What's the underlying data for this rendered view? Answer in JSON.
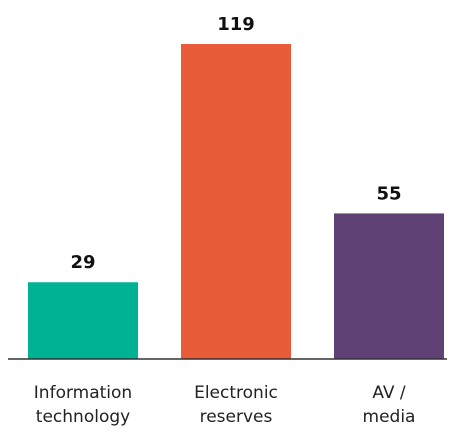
{
  "chart_data": {
    "type": "bar",
    "categories": [
      [
        "Information",
        "technology"
      ],
      [
        "Electronic",
        "reserves"
      ],
      [
        "AV /",
        "media"
      ]
    ],
    "values": [
      29,
      119,
      55
    ],
    "value_labels": [
      "29",
      "119",
      "55"
    ],
    "colors": [
      "#00b294",
      "#e85c3a",
      "#5f4175"
    ],
    "ylim": [
      0,
      119
    ],
    "grid": false,
    "title": "",
    "xlabel": "",
    "ylabel": ""
  }
}
